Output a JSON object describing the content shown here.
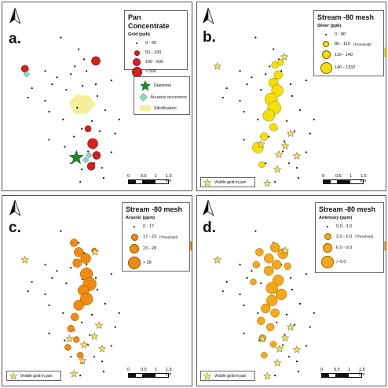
{
  "panels": {
    "a": {
      "letter": "a.",
      "legend": {
        "title": "Pan Concentrate",
        "subtitle": "Gold (ppb)",
        "classes": [
          "0 - 50",
          "50 - 100",
          "100 - 500",
          "> 500"
        ]
      },
      "features": [
        "Diatreme",
        "Acuasia occurence",
        "Silicification"
      ]
    },
    "b": {
      "letter": "b.",
      "legend": {
        "title": "Stream -80 mesh",
        "subtitle": "Silver (ppb)",
        "classes": [
          "0 - 80",
          "80 - 110",
          "110 - 140",
          "140 - 1332"
        ],
        "threshold_note": "(Threshold)"
      },
      "visible_gold": "Visible gold in pan"
    },
    "c": {
      "letter": "c.",
      "legend": {
        "title": "Stream -80 mesh",
        "subtitle": "Arsenic (ppm)",
        "classes": [
          "0 - 17",
          "17 - 23",
          "23 - 28",
          "> 28"
        ],
        "threshold_note": "(Threshold)"
      },
      "visible_gold": "Visible gold in pan"
    },
    "d": {
      "letter": "d.",
      "legend": {
        "title": "Stream -80 mesh",
        "subtitle": "Antimony (ppm)",
        "classes": [
          "0.0 - 3.0",
          "3.0 - 6.0",
          "6.0 - 9.0",
          "> 9.0"
        ],
        "threshold_note": "(Threshold)"
      },
      "visible_gold": "Visible gold in pan"
    }
  },
  "scale_labels": [
    "0",
    "0.5",
    "1",
    "1.5 km"
  ],
  "colors": {
    "gold_red": "#d81e1e",
    "silver_yellow": "#f5e000",
    "arsenic_orange": "#f08a10",
    "antimony_orange": "#f5a81a",
    "star_yellow": "#f2e64a",
    "diatreme_green": "#1f8a2a",
    "occurrence_teal": "#8fd8c8",
    "silicification": "#f6ef9a",
    "dot_black": "#111111"
  },
  "icons": [
    "north-arrow-icon",
    "star-icon",
    "diamond-icon"
  ]
}
